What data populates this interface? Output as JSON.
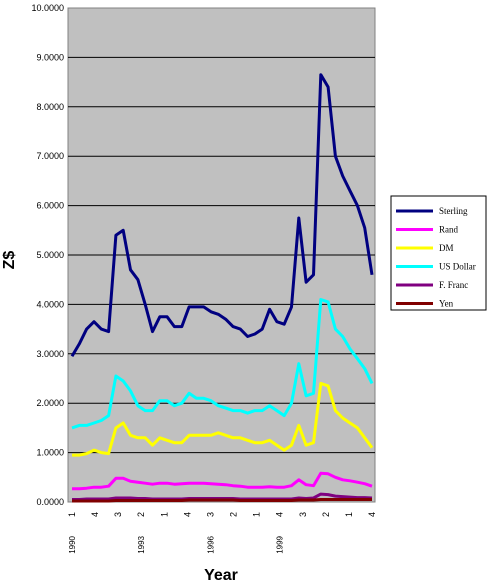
{
  "chart_data": {
    "type": "line",
    "title": "",
    "xlabel": "Year",
    "ylabel": "Z$",
    "ylim": [
      0,
      10
    ],
    "y_ticks": [
      "0.0000",
      "1.0000",
      "2.0000",
      "3.0000",
      "4.0000",
      "5.0000",
      "6.0000",
      "7.0000",
      "8.0000",
      "9.0000",
      "10.0000"
    ],
    "x_tick_labels": [
      "1",
      "4",
      "3",
      "2",
      "1",
      "4",
      "3",
      "2",
      "1",
      "4",
      "3",
      "2",
      "1",
      "4"
    ],
    "x_year_labels": [
      "1990",
      "1993",
      "1996",
      "1999"
    ],
    "grid": true,
    "legend_position": "right",
    "series": [
      {
        "name": "Sterling",
        "color": "#000080",
        "values": [
          2.95,
          3.2,
          3.5,
          3.65,
          3.5,
          3.45,
          5.4,
          5.5,
          4.7,
          4.5,
          4.0,
          3.45,
          3.75,
          3.75,
          3.55,
          3.55,
          3.95,
          3.95,
          3.95,
          3.85,
          3.8,
          3.7,
          3.55,
          3.5,
          3.35,
          3.4,
          3.5,
          3.9,
          3.65,
          3.6,
          3.95,
          5.75,
          4.45,
          4.6,
          8.65,
          8.4,
          7.0,
          6.6,
          6.3,
          6.0,
          5.55,
          4.6
        ]
      },
      {
        "name": "Rand",
        "color": "#FF00FF",
        "values": [
          0.27,
          0.27,
          0.28,
          0.3,
          0.3,
          0.32,
          0.48,
          0.48,
          0.42,
          0.4,
          0.38,
          0.36,
          0.38,
          0.38,
          0.36,
          0.37,
          0.38,
          0.38,
          0.38,
          0.37,
          0.36,
          0.35,
          0.33,
          0.32,
          0.3,
          0.3,
          0.3,
          0.31,
          0.3,
          0.3,
          0.33,
          0.45,
          0.35,
          0.33,
          0.58,
          0.57,
          0.5,
          0.45,
          0.43,
          0.4,
          0.37,
          0.32
        ]
      },
      {
        "name": "DM",
        "color": "#FFFF00",
        "values": [
          0.95,
          0.95,
          0.98,
          1.05,
          1.0,
          0.98,
          1.5,
          1.6,
          1.35,
          1.3,
          1.3,
          1.15,
          1.3,
          1.25,
          1.2,
          1.2,
          1.35,
          1.35,
          1.35,
          1.35,
          1.4,
          1.35,
          1.3,
          1.3,
          1.25,
          1.2,
          1.2,
          1.25,
          1.15,
          1.05,
          1.15,
          1.55,
          1.15,
          1.2,
          2.4,
          2.35,
          1.85,
          1.7,
          1.6,
          1.5,
          1.3,
          1.1
        ]
      },
      {
        "name": "US Dollar",
        "color": "#00FFFF",
        "values": [
          1.5,
          1.55,
          1.55,
          1.6,
          1.65,
          1.75,
          2.55,
          2.45,
          2.25,
          1.95,
          1.85,
          1.85,
          2.05,
          2.05,
          1.95,
          2.0,
          2.2,
          2.1,
          2.1,
          2.05,
          1.95,
          1.9,
          1.85,
          1.85,
          1.8,
          1.85,
          1.85,
          1.95,
          1.85,
          1.75,
          2.0,
          2.8,
          2.15,
          2.2,
          4.1,
          4.05,
          3.5,
          3.35,
          3.1,
          2.9,
          2.7,
          2.4
        ]
      },
      {
        "name": "F. Franc",
        "color": "#800080",
        "values": [
          0.05,
          0.05,
          0.06,
          0.06,
          0.06,
          0.06,
          0.08,
          0.08,
          0.08,
          0.07,
          0.07,
          0.06,
          0.06,
          0.06,
          0.06,
          0.06,
          0.07,
          0.07,
          0.07,
          0.07,
          0.07,
          0.07,
          0.07,
          0.06,
          0.06,
          0.06,
          0.06,
          0.06,
          0.06,
          0.06,
          0.06,
          0.08,
          0.07,
          0.08,
          0.16,
          0.15,
          0.12,
          0.11,
          0.1,
          0.09,
          0.09,
          0.08
        ]
      },
      {
        "name": "Yen",
        "color": "#800000",
        "values": [
          0.02,
          0.02,
          0.02,
          0.02,
          0.02,
          0.02,
          0.03,
          0.03,
          0.03,
          0.03,
          0.03,
          0.03,
          0.03,
          0.03,
          0.03,
          0.03,
          0.04,
          0.04,
          0.04,
          0.04,
          0.04,
          0.04,
          0.04,
          0.03,
          0.03,
          0.03,
          0.03,
          0.03,
          0.03,
          0.03,
          0.03,
          0.04,
          0.04,
          0.04,
          0.05,
          0.05,
          0.05,
          0.05,
          0.05,
          0.05,
          0.05,
          0.05
        ]
      }
    ]
  }
}
